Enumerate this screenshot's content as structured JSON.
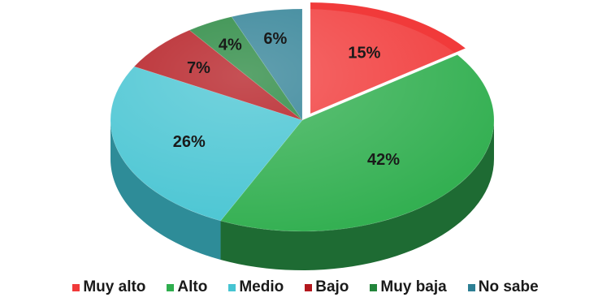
{
  "chart_data": {
    "type": "pie",
    "title": "",
    "style": "3d-exploded",
    "categories": [
      "Muy alto",
      "Alto",
      "Medio",
      "Bajo",
      "Muy baja",
      "No sabe"
    ],
    "values": [
      15,
      42,
      26,
      7,
      4,
      6
    ],
    "labels": [
      "15%",
      "42%",
      "26%",
      "7%",
      "4%",
      "6%"
    ],
    "colors": [
      "#f13a3a",
      "#2fae4e",
      "#46c4d2",
      "#b3171d",
      "#23853b",
      "#2d7f94"
    ],
    "side_colors": [
      "#b22a2a",
      "#1e6b33",
      "#2e8c98",
      "#7e1014",
      "#175c28",
      "#1e5d6c"
    ],
    "legend_position": "bottom"
  }
}
